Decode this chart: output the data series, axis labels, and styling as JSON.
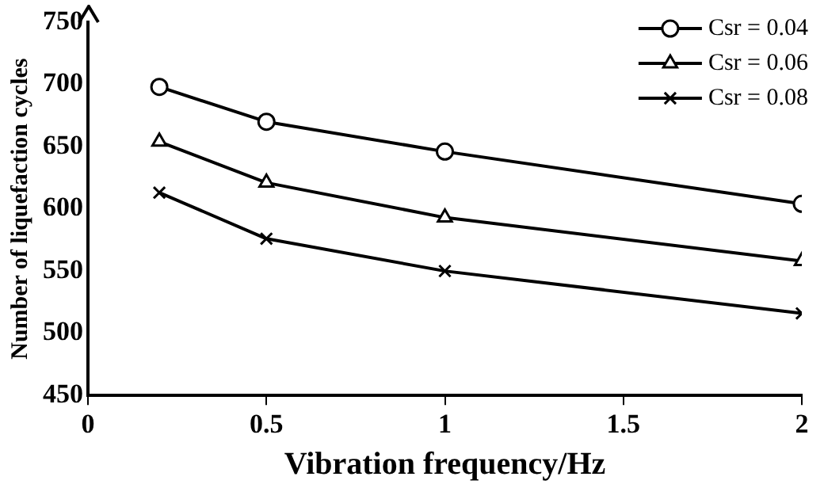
{
  "chart_data": {
    "type": "line",
    "xlabel": "Vibration frequency/Hz",
    "ylabel": "Number of liquefaction cycles",
    "x": [
      0.2,
      0.5,
      1,
      2
    ],
    "series": [
      {
        "name": "Csr = 0.04",
        "color": "#000000",
        "marker": "circle",
        "values": [
          698,
          670,
          646,
          604
        ]
      },
      {
        "name": "Csr = 0.06",
        "color": "#000000",
        "marker": "triangle",
        "values": [
          654,
          621,
          593,
          558
        ]
      },
      {
        "name": "Csr = 0.08",
        "color": "#000000",
        "marker": "cross",
        "values": [
          613,
          576,
          550,
          516
        ]
      }
    ],
    "xlim": [
      0,
      2
    ],
    "xticks": [
      0,
      0.5,
      1,
      1.5,
      2
    ],
    "ylim": [
      450,
      750
    ],
    "yticks": [
      450,
      500,
      550,
      600,
      650,
      700,
      750
    ],
    "grid": false,
    "legend": "top right",
    "line_style": "solid"
  }
}
